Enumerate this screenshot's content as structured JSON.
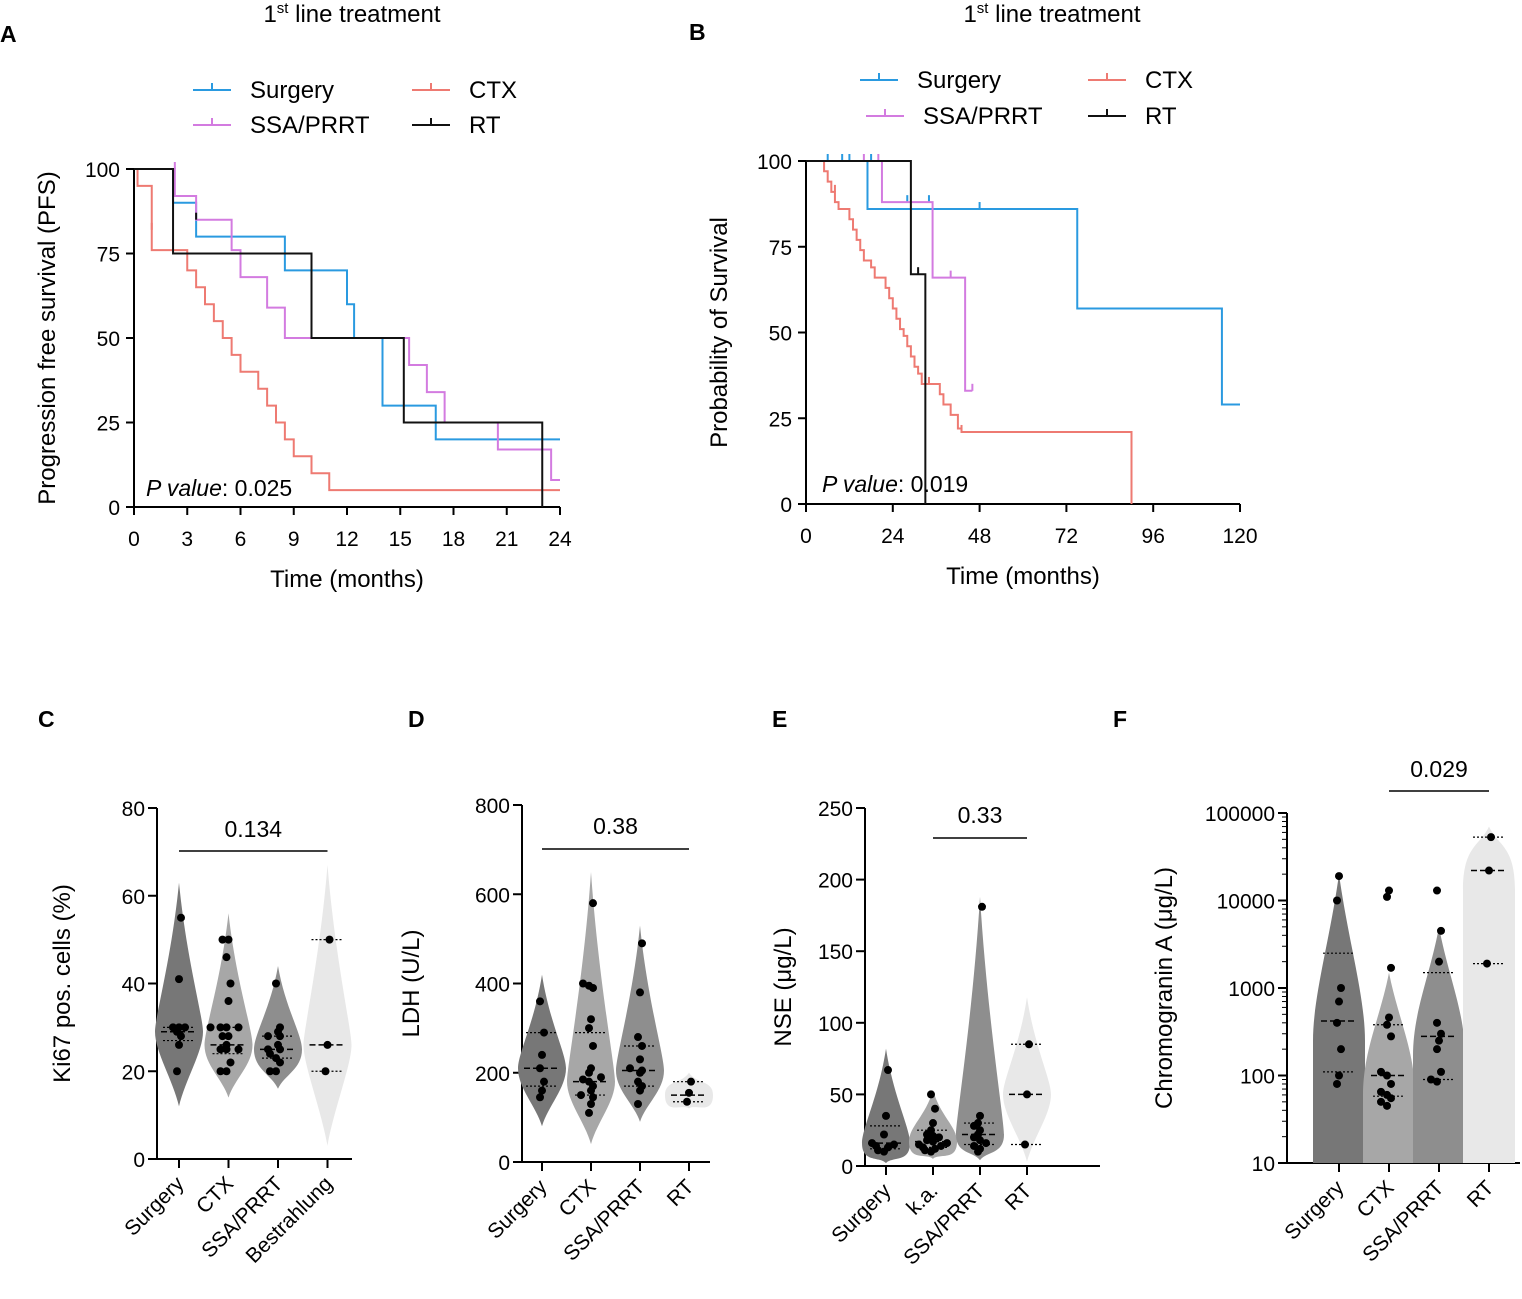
{
  "figure": {
    "panels": {
      "A": "A",
      "B": "B",
      "C": "C",
      "D": "D",
      "E": "E",
      "F": "F"
    }
  },
  "chart_data": [
    {
      "id": "A",
      "type": "line",
      "subtype": "kaplan-meier",
      "title_sup": "st",
      "title_prefix": "1",
      "title": "line treatment",
      "xlabel": "Time (months)",
      "ylabel": "Progression free survival (PFS)",
      "xlim": [
        0,
        24
      ],
      "ylim": [
        0,
        100
      ],
      "xticks": [
        0,
        3,
        6,
        9,
        12,
        15,
        18,
        21,
        24
      ],
      "yticks": [
        0,
        25,
        50,
        75,
        100
      ],
      "pvalue_label": "P value",
      "pvalue": ": 0.025",
      "legend": [
        "Surgery",
        "SSA/PRRT",
        "CTX",
        "RT"
      ],
      "colors": {
        "Surgery": "#2a9ae0",
        "SSA/PRRT": "#d37be0",
        "CTX": "#ee7a72",
        "RT": "#111111"
      },
      "series": [
        {
          "name": "Surgery",
          "steps": [
            [
              0,
              100
            ],
            [
              2.2,
              90
            ],
            [
              3.5,
              80
            ],
            [
              8.5,
              70
            ],
            [
              12,
              60
            ],
            [
              12.4,
              50
            ],
            [
              14,
              30
            ],
            [
              17,
              20
            ],
            [
              24,
              20
            ]
          ],
          "censor": []
        },
        {
          "name": "SSA/PRRT",
          "steps": [
            [
              0,
              100
            ],
            [
              2.3,
              92
            ],
            [
              3.5,
              85
            ],
            [
              5.5,
              76
            ],
            [
              6,
              68
            ],
            [
              7.5,
              59
            ],
            [
              8.5,
              50
            ],
            [
              15.5,
              42
            ],
            [
              16.5,
              34
            ],
            [
              17.5,
              25
            ],
            [
              20.5,
              17
            ],
            [
              23.5,
              8
            ],
            [
              24,
              8
            ]
          ],
          "censor": [
            [
              2.3,
              100
            ]
          ]
        },
        {
          "name": "CTX",
          "steps": [
            [
              0,
              100
            ],
            [
              0.2,
              95
            ],
            [
              1,
              76
            ],
            [
              3,
              70
            ],
            [
              3.5,
              65
            ],
            [
              4,
              60
            ],
            [
              4.5,
              55
            ],
            [
              5,
              50
            ],
            [
              5.5,
              45
            ],
            [
              6,
              40
            ],
            [
              7,
              35
            ],
            [
              7.5,
              30
            ],
            [
              8,
              25
            ],
            [
              8.5,
              20
            ],
            [
              9,
              15
            ],
            [
              10,
              10
            ],
            [
              11,
              5
            ],
            [
              24,
              5
            ]
          ],
          "censor": [
            [
              1,
              82
            ]
          ]
        },
        {
          "name": "RT",
          "steps": [
            [
              0,
              100
            ],
            [
              2.2,
              75
            ],
            [
              10,
              50
            ],
            [
              15.2,
              25
            ],
            [
              23,
              0
            ]
          ],
          "censor": [
            [
              3.5,
              85
            ]
          ]
        }
      ]
    },
    {
      "id": "B",
      "type": "line",
      "subtype": "kaplan-meier",
      "title_sup": "st",
      "title_prefix": "1",
      "title": "line treatment",
      "xlabel": "Time (months)",
      "ylabel": "Probability of Survival",
      "xlim": [
        0,
        120
      ],
      "ylim": [
        0,
        100
      ],
      "xticks": [
        0,
        24,
        48,
        72,
        96,
        120
      ],
      "yticks": [
        0,
        25,
        50,
        75,
        100
      ],
      "pvalue_label": "P value",
      "pvalue": ": 0.019",
      "legend": [
        "Surgery",
        "SSA/PRRT",
        "CTX",
        "RT"
      ],
      "colors": {
        "Surgery": "#2a9ae0",
        "SSA/PRRT": "#d37be0",
        "CTX": "#ee7a72",
        "RT": "#111111"
      },
      "series": [
        {
          "name": "Surgery",
          "steps": [
            [
              0,
              100
            ],
            [
              17,
              86
            ],
            [
              75,
              57
            ],
            [
              115,
              29
            ],
            [
              120,
              29
            ]
          ],
          "censor": [
            [
              6,
              100
            ],
            [
              10,
              100
            ],
            [
              12,
              100
            ],
            [
              18,
              100
            ],
            [
              28,
              88
            ],
            [
              34,
              88
            ],
            [
              48,
              86
            ]
          ]
        },
        {
          "name": "SSA/PRRT",
          "steps": [
            [
              0,
              100
            ],
            [
              21,
              88
            ],
            [
              35,
              66
            ],
            [
              44,
              33
            ],
            [
              46,
              33
            ]
          ],
          "censor": [
            [
              16,
              100
            ],
            [
              20,
              100
            ],
            [
              40,
              66
            ],
            [
              46,
              33
            ]
          ]
        },
        {
          "name": "CTX",
          "steps": [
            [
              0,
              100
            ],
            [
              5,
              97
            ],
            [
              6,
              94
            ],
            [
              7,
              91
            ],
            [
              8,
              88
            ],
            [
              9,
              86
            ],
            [
              12,
              83
            ],
            [
              13,
              80
            ],
            [
              14,
              77
            ],
            [
              15,
              74
            ],
            [
              16,
              71
            ],
            [
              18,
              69
            ],
            [
              19,
              66
            ],
            [
              22,
              63
            ],
            [
              23,
              60
            ],
            [
              24,
              57
            ],
            [
              25,
              54
            ],
            [
              26,
              51
            ],
            [
              27,
              49
            ],
            [
              28,
              46
            ],
            [
              29,
              43
            ],
            [
              30,
              40
            ],
            [
              31,
              38
            ],
            [
              32,
              35
            ],
            [
              37,
              32
            ],
            [
              38,
              29
            ],
            [
              40,
              26
            ],
            [
              42,
              22
            ],
            [
              43,
              21
            ],
            [
              90,
              0
            ]
          ],
          "censor": [
            [
              8,
              91
            ],
            [
              34,
              35
            ],
            [
              43,
              21
            ]
          ]
        },
        {
          "name": "RT",
          "steps": [
            [
              0,
              100
            ],
            [
              29,
              67
            ],
            [
              33,
              0
            ]
          ],
          "censor": [
            [
              31,
              67
            ]
          ]
        }
      ]
    },
    {
      "id": "C",
      "type": "violin",
      "ylabel": "Ki67 pos. cells (%)",
      "ylim": [
        0,
        80
      ],
      "yticks": [
        0,
        20,
        40,
        60,
        80
      ],
      "categories": [
        "Surgery",
        "CTX",
        "SSA/PRRT",
        "Bestrahlung"
      ],
      "fills": [
        "#777777",
        "#a7a7a7",
        "#8e8e8e",
        "#e8e8e8"
      ],
      "pvalue": "0.134",
      "bracket": [
        0,
        3
      ],
      "groups": [
        {
          "points": [
            20,
            26,
            28,
            29,
            30,
            30,
            30,
            41,
            55
          ],
          "median": 29,
          "q1": 27,
          "q3": 30,
          "min": 12,
          "max": 63
        },
        {
          "points": [
            20,
            20,
            22,
            25,
            25,
            25,
            26,
            28,
            28,
            30,
            30,
            30,
            30,
            36,
            40,
            46,
            50,
            50
          ],
          "median": 26,
          "q1": 24,
          "q3": 30,
          "min": 14,
          "max": 56
        },
        {
          "points": [
            20,
            20,
            22,
            23,
            24,
            25,
            25,
            26,
            28,
            28,
            29,
            30,
            40
          ],
          "median": 25,
          "q1": 23,
          "q3": 28,
          "min": 16,
          "max": 44
        },
        {
          "points": [
            20,
            26,
            50
          ],
          "median": 26,
          "q1": 20,
          "q3": 50,
          "min": 3,
          "max": 67
        }
      ]
    },
    {
      "id": "D",
      "type": "violin",
      "ylabel": "LDH (U/L)",
      "ylim": [
        0,
        800
      ],
      "yticks": [
        0,
        200,
        400,
        600,
        800
      ],
      "categories": [
        "Surgery",
        "CTX",
        "SSA/PRRT",
        "RT"
      ],
      "fills": [
        "#777777",
        "#a7a7a7",
        "#8e8e8e",
        "#e8e8e8"
      ],
      "pvalue": "0.38",
      "bracket": [
        0,
        3
      ],
      "groups": [
        {
          "points": [
            145,
            160,
            180,
            210,
            240,
            290,
            360
          ],
          "median": 210,
          "q1": 170,
          "q3": 290,
          "min": 80,
          "max": 420
        },
        {
          "points": [
            110,
            130,
            145,
            150,
            160,
            170,
            180,
            185,
            190,
            200,
            210,
            260,
            300,
            320,
            390,
            395,
            400,
            580
          ],
          "median": 180,
          "q1": 150,
          "q3": 290,
          "min": 40,
          "max": 650
        },
        {
          "points": [
            130,
            160,
            170,
            180,
            200,
            205,
            210,
            230,
            260,
            280,
            380,
            490
          ],
          "median": 205,
          "q1": 170,
          "q3": 260,
          "min": 90,
          "max": 530
        },
        {
          "points": [
            135,
            155,
            180
          ],
          "median": 150,
          "q1": 135,
          "q3": 180,
          "min": 120,
          "max": 200
        }
      ]
    },
    {
      "id": "E",
      "type": "violin",
      "ylabel": "NSE (μg/L)",
      "ylim": [
        0,
        250
      ],
      "yticks": [
        0,
        50,
        100,
        150,
        200,
        250
      ],
      "categories": [
        "Surgery",
        "k.a.",
        "SSA/PRRT",
        "RT"
      ],
      "fills": [
        "#777777",
        "#a7a7a7",
        "#8e8e8e",
        "#e8e8e8"
      ],
      "pvalue": "0.33",
      "bracket": [
        1,
        3
      ],
      "groups": [
        {
          "points": [
            10,
            11,
            13,
            14,
            15,
            16,
            22,
            35,
            67
          ],
          "median": 16,
          "q1": 12,
          "q3": 28,
          "min": 2,
          "max": 82
        },
        {
          "points": [
            10,
            11,
            12,
            13,
            14,
            15,
            16,
            17,
            18,
            20,
            21,
            22,
            25,
            30,
            40,
            50
          ],
          "median": 17,
          "q1": 13,
          "q3": 25,
          "min": 5,
          "max": 53
        },
        {
          "points": [
            10,
            12,
            14,
            16,
            18,
            20,
            22,
            25,
            28,
            30,
            35,
            181
          ],
          "median": 22,
          "q1": 15,
          "q3": 30,
          "min": 4,
          "max": 188
        },
        {
          "points": [
            15,
            50,
            85
          ],
          "median": 50,
          "q1": 15,
          "q3": 85,
          "min": 3,
          "max": 118
        }
      ]
    },
    {
      "id": "F",
      "type": "violin",
      "scale": "log",
      "ylabel": "Chromogranin A (μg/L)",
      "ylim": [
        10,
        100000
      ],
      "yticks": [
        10,
        100,
        1000,
        10000,
        100000
      ],
      "categories": [
        "Surgery",
        "CTX",
        "SSA/PRRT",
        "RT"
      ],
      "fills": [
        "#777777",
        "#a7a7a7",
        "#8e8e8e",
        "#e8e8e8"
      ],
      "pvalue": "0.029",
      "bracket": [
        1,
        3
      ],
      "groups": [
        {
          "points": [
            80,
            100,
            200,
            400,
            700,
            1000,
            10000,
            19000
          ],
          "median": 420,
          "q1": 110,
          "q3": 2500,
          "min": 10,
          "max": 20000
        },
        {
          "points": [
            45,
            50,
            55,
            60,
            65,
            80,
            100,
            110,
            280,
            380,
            460,
            1700,
            11000,
            13000
          ],
          "median": 100,
          "q1": 58,
          "q3": 380,
          "min": 10,
          "max": 1500
        },
        {
          "points": [
            85,
            90,
            110,
            200,
            250,
            300,
            400,
            2000,
            4500,
            13000
          ],
          "median": 280,
          "q1": 90,
          "q3": 1500,
          "min": 10,
          "max": 5000
        },
        {
          "points": [
            1900,
            22000,
            53000
          ],
          "median": 22000,
          "q1": 1900,
          "q3": 53000,
          "min": 10,
          "max": 70000
        }
      ]
    }
  ]
}
